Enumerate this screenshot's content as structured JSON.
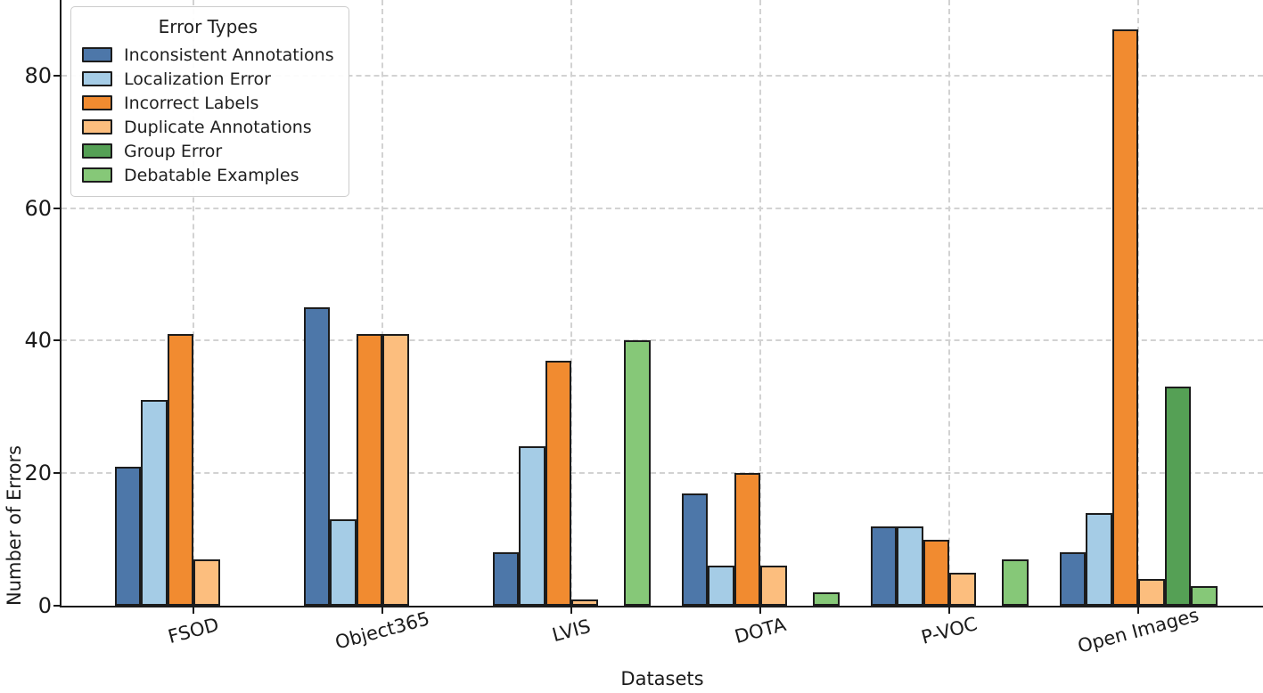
{
  "chart_data": {
    "type": "bar",
    "title": "",
    "xlabel": "Datasets",
    "ylabel": "Number of Errors",
    "categories": [
      "FSOD",
      "Object365",
      "LVIS",
      "DOTA",
      "P-VOC",
      "Open Images"
    ],
    "series": [
      {
        "name": "Inconsistent Annotations",
        "color": "#4D77A9",
        "values": [
          21,
          45,
          8,
          17,
          12,
          8
        ]
      },
      {
        "name": "Localization Error",
        "color": "#A5CCE6",
        "values": [
          31,
          13,
          24,
          6,
          12,
          14
        ]
      },
      {
        "name": "Incorrect Labels",
        "color": "#F18B30",
        "values": [
          41,
          41,
          37,
          20,
          10,
          87
        ]
      },
      {
        "name": "Duplicate Annotations",
        "color": "#FCBE7E",
        "values": [
          7,
          41,
          1,
          6,
          5,
          4
        ]
      },
      {
        "name": "Group Error",
        "color": "#55A055",
        "values": [
          0,
          0,
          0,
          0,
          0,
          33
        ]
      },
      {
        "name": "Debatable Examples",
        "color": "#86C878",
        "values": [
          0,
          0,
          40,
          2,
          7,
          3
        ]
      }
    ],
    "yticks": [
      0,
      20,
      40,
      60,
      80
    ],
    "ylim": [
      0,
      91
    ],
    "grid": {
      "visible": true,
      "style": "dashed",
      "color": "#d2d2d2"
    },
    "bar_edge_color": "#1c1c1c",
    "legend": {
      "title": "Error Types",
      "position": "upper-left"
    }
  }
}
